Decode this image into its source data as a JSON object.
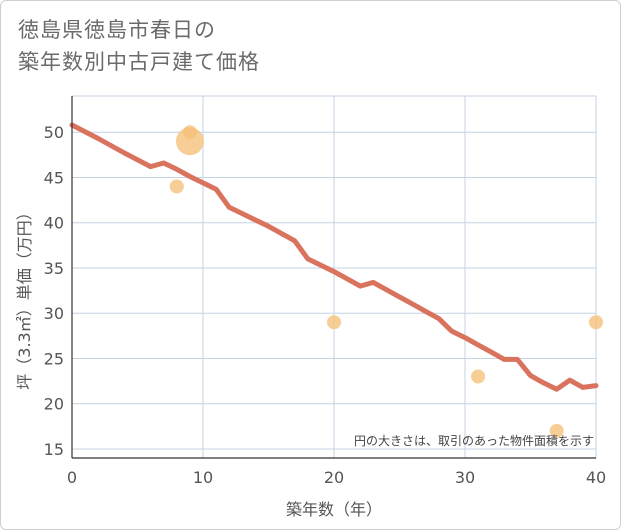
{
  "title_lines": [
    "徳島県徳島市春日の",
    "築年数別中古戸建て価格"
  ],
  "chart_data": {
    "type": "scatter",
    "title": "徳島県徳島市春日の築年数別中古戸建て価格",
    "xlabel": "築年数（年）",
    "ylabel": "坪（3.3㎡）単価（万円）",
    "xlim": [
      0,
      40
    ],
    "ylim": [
      14,
      54
    ],
    "x_ticks": [
      0,
      10,
      20,
      30,
      40
    ],
    "y_ticks": [
      15,
      20,
      25,
      30,
      35,
      40,
      45,
      50
    ],
    "grid": true,
    "note": "円の大きさは、取引のあった物件面積を示す",
    "scatter_points": [
      {
        "x": 8,
        "y": 44,
        "size": 1
      },
      {
        "x": 9,
        "y": 50,
        "size": 1
      },
      {
        "x": 9,
        "y": 49,
        "size": 4
      },
      {
        "x": 20,
        "y": 29,
        "size": 1
      },
      {
        "x": 31,
        "y": 23,
        "size": 1
      },
      {
        "x": 37,
        "y": 17,
        "size": 1
      },
      {
        "x": 40,
        "y": 29,
        "size": 1
      }
    ],
    "trend_line": {
      "x": [
        0,
        2,
        4,
        6,
        7,
        8,
        9,
        10,
        11,
        12,
        13,
        14,
        15,
        16,
        17,
        18,
        19,
        20,
        21,
        22,
        23,
        24,
        25,
        26,
        27,
        28,
        29,
        30,
        31,
        32,
        33,
        34,
        35,
        36,
        37,
        38,
        39,
        40
      ],
      "y": [
        50.8,
        49.3,
        47.7,
        46.2,
        46.6,
        45.9,
        45.1,
        44.4,
        43.7,
        41.7,
        41.0,
        40.3,
        39.6,
        38.8,
        38.0,
        36.0,
        35.3,
        34.6,
        33.8,
        33.0,
        33.4,
        32.6,
        31.8,
        31.0,
        30.2,
        29.4,
        28.0,
        27.3,
        26.5,
        25.7,
        24.9,
        24.9,
        23.1,
        22.3,
        21.6,
        22.6,
        21.8,
        22.0
      ]
    },
    "colors": {
      "line": "#d9735e",
      "points": "#f5c27a",
      "grid": "#c5d3e3",
      "text": "#555555"
    }
  }
}
